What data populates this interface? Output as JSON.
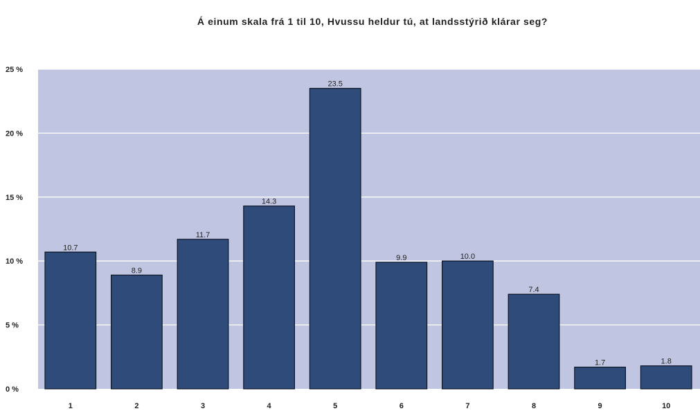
{
  "chart_data": {
    "type": "bar",
    "title": "Á einum skala frá 1 til 10, Hvussu heldur tú, at landsstýrið klárar seg?",
    "xlabel": "",
    "ylabel": "",
    "categories": [
      "1",
      "2",
      "3",
      "4",
      "5",
      "6",
      "7",
      "8",
      "9",
      "10"
    ],
    "values": [
      10.7,
      8.9,
      11.7,
      14.3,
      23.5,
      9.9,
      10.0,
      7.4,
      1.7,
      1.8
    ],
    "data_labels": [
      "10.7",
      "8.9",
      "11.7",
      "14.3",
      "23.5",
      "9.9",
      "10.0",
      "7.4",
      "1.7",
      "1.8"
    ],
    "ylim": [
      0,
      25
    ],
    "yticks": [
      0,
      5,
      10,
      15,
      20,
      25
    ],
    "ytick_labels": [
      "0 %",
      "5 %",
      "10 %",
      "15 %",
      "20 %",
      "25 %"
    ],
    "grid": true,
    "legend": "none",
    "colors": {
      "bar_fill": "#2f4b7a",
      "bar_stroke": "#0d1626",
      "plot_background": "#c0c6e2",
      "gridline": "#ffffff"
    }
  }
}
